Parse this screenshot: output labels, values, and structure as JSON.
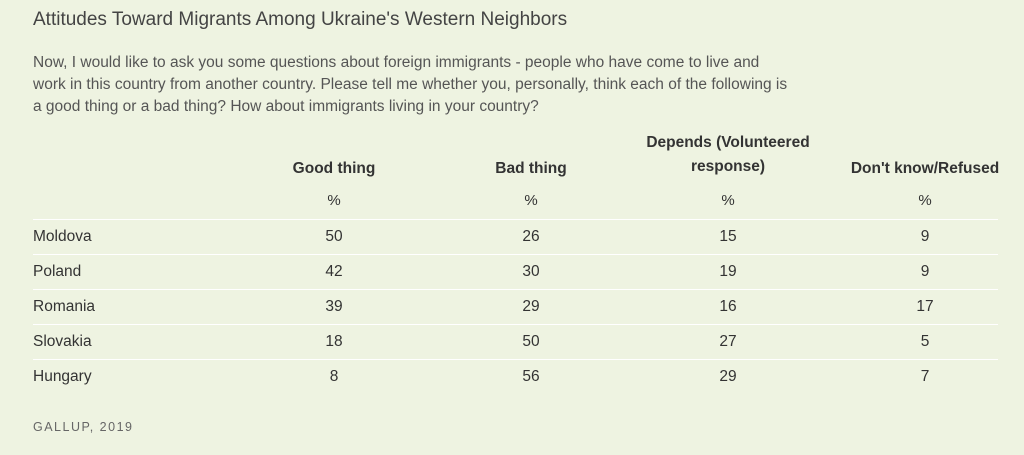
{
  "title": "Attitudes Toward Migrants Among Ukraine's Western Neighbors",
  "question_lines": [
    "Now, I would like to ask you some questions about foreign immigrants - people who have come to live and",
    "work in this country from another country. Please tell me whether you, personally, think each of the following is",
    "a good thing or a bad thing? How about immigrants living in your country?"
  ],
  "columns": [
    {
      "lines": [
        "Good thing"
      ],
      "unit": "%"
    },
    {
      "lines": [
        "Bad thing"
      ],
      "unit": "%"
    },
    {
      "lines": [
        "Depends (Volunteered",
        "response)"
      ],
      "unit": "%"
    },
    {
      "lines": [
        "Don't know/Refused"
      ],
      "unit": "%"
    }
  ],
  "rows": [
    {
      "country": "Moldova",
      "values": [
        "50",
        "26",
        "15",
        "9"
      ]
    },
    {
      "country": "Poland",
      "values": [
        "42",
        "30",
        "19",
        "9"
      ]
    },
    {
      "country": "Romania",
      "values": [
        "39",
        "29",
        "16",
        "17"
      ]
    },
    {
      "country": "Slovakia",
      "values": [
        "18",
        "50",
        "27",
        "5"
      ]
    },
    {
      "country": "Hungary",
      "values": [
        "8",
        "56",
        "29",
        "7"
      ]
    }
  ],
  "source": "GALLUP, 2019"
}
